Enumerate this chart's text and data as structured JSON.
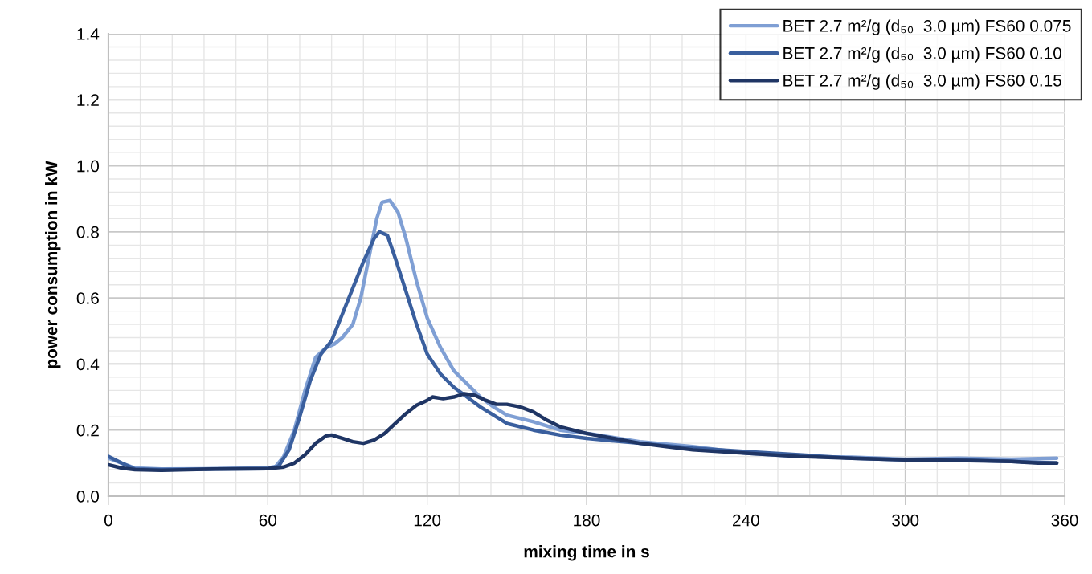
{
  "chart_data": {
    "type": "line",
    "xlabel": "mixing time in s",
    "ylabel": "power consumption in kW",
    "xlim": [
      0,
      360
    ],
    "xticks": [
      0,
      60,
      120,
      180,
      240,
      300,
      360
    ],
    "ylim": [
      0,
      1.4
    ],
    "yticks": [
      {
        "value": 0,
        "label": "0.0"
      },
      {
        "value": 0.2,
        "label": "0.2"
      },
      {
        "value": 0.4,
        "label": "0.4"
      },
      {
        "value": 0.6,
        "label": "0.6"
      },
      {
        "value": 0.8,
        "label": "0.8"
      },
      {
        "value": 1.0,
        "label": "1.0"
      },
      {
        "value": 1.2,
        "label": "1.2"
      },
      {
        "value": 1.4,
        "label": "1.4"
      }
    ],
    "grid": true,
    "legend": "top right",
    "marker": "none",
    "line_style": "solid",
    "series": [
      {
        "name": "BET 2.7 m²/g (d₅₀  3.0 µm) FS60 0.075",
        "color": "#7f9fd4",
        "x": [
          0,
          5,
          10,
          20,
          40,
          60,
          63,
          66,
          70,
          74,
          78,
          82,
          85,
          88,
          92,
          95,
          98,
          101,
          103,
          106,
          109,
          112,
          116,
          120,
          125,
          130,
          135,
          140,
          145,
          150,
          160,
          170,
          180,
          200,
          220,
          240,
          260,
          280,
          300,
          320,
          340,
          357
        ],
        "values": [
          0.115,
          0.1,
          0.085,
          0.082,
          0.083,
          0.085,
          0.09,
          0.12,
          0.2,
          0.32,
          0.42,
          0.45,
          0.46,
          0.48,
          0.52,
          0.6,
          0.72,
          0.84,
          0.89,
          0.895,
          0.86,
          0.78,
          0.65,
          0.54,
          0.45,
          0.38,
          0.34,
          0.3,
          0.27,
          0.245,
          0.225,
          0.2,
          0.19,
          0.165,
          0.15,
          0.13,
          0.12,
          0.118,
          0.112,
          0.115,
          0.112,
          0.115
        ]
      },
      {
        "name": "BET 2.7 m²/g (d₅₀  3.0 µm) FS60 0.10",
        "color": "#3a5f9e",
        "x": [
          0,
          5,
          10,
          20,
          40,
          60,
          64,
          68,
          72,
          76,
          80,
          84,
          88,
          92,
          96,
          100,
          102,
          105,
          108,
          112,
          116,
          120,
          125,
          130,
          135,
          140,
          145,
          150,
          160,
          170,
          180,
          200,
          220,
          240,
          260,
          280,
          300,
          320,
          340,
          357
        ],
        "values": [
          0.12,
          0.1,
          0.082,
          0.08,
          0.082,
          0.083,
          0.09,
          0.14,
          0.24,
          0.35,
          0.43,
          0.47,
          0.55,
          0.63,
          0.71,
          0.78,
          0.8,
          0.79,
          0.72,
          0.62,
          0.52,
          0.43,
          0.37,
          0.33,
          0.3,
          0.27,
          0.245,
          0.22,
          0.2,
          0.185,
          0.175,
          0.16,
          0.145,
          0.135,
          0.125,
          0.115,
          0.11,
          0.11,
          0.105,
          0.1
        ]
      },
      {
        "name": "BET 2.7 m²/g (d₅₀  3.0 µm) FS60 0.15",
        "color": "#1f3564",
        "x": [
          0,
          5,
          10,
          20,
          40,
          60,
          66,
          70,
          74,
          78,
          82,
          84,
          88,
          92,
          96,
          100,
          104,
          108,
          112,
          116,
          120,
          122,
          126,
          130,
          134,
          138,
          142,
          146,
          150,
          155,
          160,
          165,
          170,
          180,
          190,
          200,
          210,
          220,
          240,
          260,
          280,
          300,
          320,
          340,
          350,
          357
        ],
        "values": [
          0.095,
          0.085,
          0.08,
          0.078,
          0.082,
          0.083,
          0.088,
          0.1,
          0.125,
          0.16,
          0.183,
          0.185,
          0.175,
          0.165,
          0.16,
          0.17,
          0.19,
          0.22,
          0.25,
          0.275,
          0.29,
          0.3,
          0.295,
          0.3,
          0.31,
          0.305,
          0.29,
          0.278,
          0.278,
          0.27,
          0.255,
          0.23,
          0.21,
          0.19,
          0.175,
          0.16,
          0.15,
          0.14,
          0.13,
          0.12,
          0.115,
          0.11,
          0.108,
          0.105,
          0.1,
          0.1
        ]
      }
    ]
  }
}
